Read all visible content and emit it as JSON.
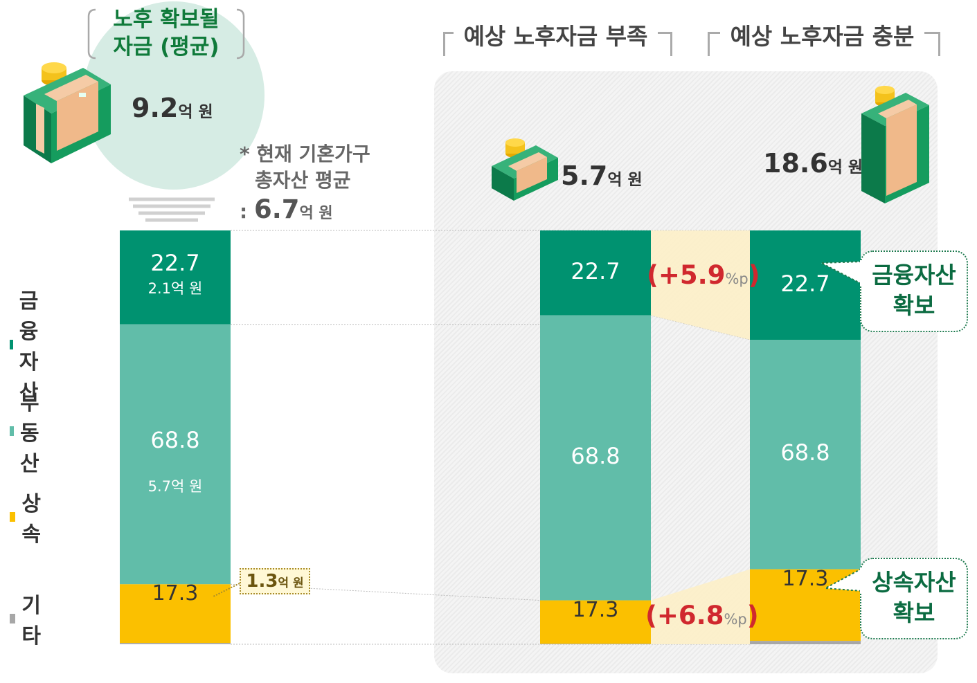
{
  "header": {
    "title_line1": "노후 확보될",
    "title_line2": "자금 (평균)",
    "amount": "9.2",
    "amount_unit": "억 원"
  },
  "note": {
    "line1": "* 현재 기혼가구",
    "line2": "총자산 평균",
    "prefix": ": ",
    "value": "6.7",
    "unit": "억 원"
  },
  "groups": [
    {
      "title": "예상 노후자금 부족",
      "amount": "5.7",
      "unit": "억 원"
    },
    {
      "title": "예상 노후자금 충분",
      "amount": "18.6",
      "unit": "억 원"
    }
  ],
  "legend": [
    {
      "label": "금융자산",
      "color": "#009270"
    },
    {
      "label": "부동산",
      "color": "#61bda9"
    },
    {
      "label": "상속",
      "color": "#fbc000"
    },
    {
      "label": "기타",
      "color": "#a7a7a7"
    }
  ],
  "chart_data": {
    "type": "bar",
    "stacked": true,
    "percent": true,
    "categories": [
      "노후 확보될 자금 (평균)",
      "예상 노후자금 부족",
      "예상 노후자금 충분"
    ],
    "series": [
      {
        "name": "금융자산",
        "values": [
          22.7,
          20.5,
          26.4
        ],
        "color": "#009270"
      },
      {
        "name": "부동산",
        "values": [
          62.8,
          68.8,
          55.4
        ],
        "color": "#61bda9"
      },
      {
        "name": "상속",
        "values": [
          14.2,
          10.5,
          17.3
        ],
        "color": "#fbc000"
      },
      {
        "name": "기타",
        "values": [
          0.3,
          0.1,
          0.8
        ],
        "color": "#a7a7a7"
      }
    ],
    "amount_labels": {
      "financial": "2.1억 원",
      "real_estate": "5.7억 원",
      "inheritance_value": "1.3",
      "inheritance_unit": "억 원"
    },
    "differences": [
      {
        "text": "(+5.9",
        "unit": "%p",
        "close": ")"
      },
      {
        "text": "(+6.8",
        "unit": "%p",
        "close": ")"
      }
    ],
    "callouts": [
      {
        "line1": "금융자산",
        "line2": "확보"
      },
      {
        "line1": "상속자산",
        "line2": "확보"
      }
    ]
  }
}
